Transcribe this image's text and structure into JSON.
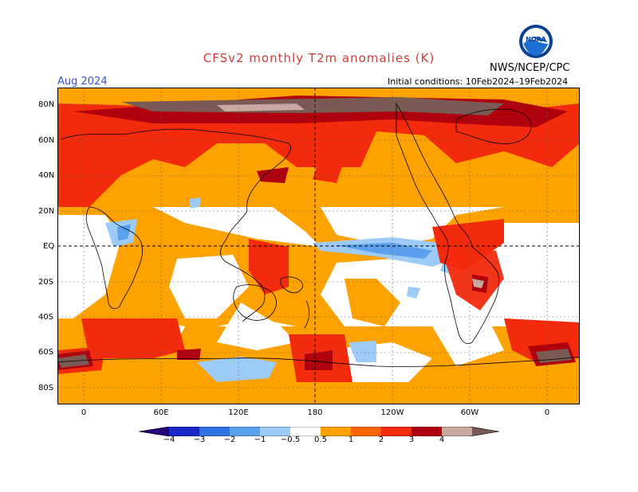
{
  "header": {
    "title": "CFSv2 monthly T2m anomalies (K)",
    "agency": "NWS/NCEP/CPC",
    "month": "Aug 2024",
    "initial_conditions": "Initial conditions: 10Feb2024–19Feb2024"
  },
  "colors": {
    "title": "#d23c3c",
    "month": "#3a4fd0",
    "bins": [
      "#24007d",
      "#1a28c8",
      "#2f72e4",
      "#5aa0ee",
      "#9ccbf7",
      "#ffffff",
      "#fea200",
      "#ff6600",
      "#f42a0d",
      "#b0000e",
      "#6e0000",
      "#c9a9a0",
      "#7a5a52"
    ]
  },
  "logo": {
    "icon": "noaa-logo-icon",
    "text": "NOAA"
  },
  "map": {
    "lat_labels": [
      "80N",
      "60N",
      "40N",
      "20N",
      "EQ",
      "20S",
      "40S",
      "60S",
      "80S"
    ],
    "lon_labels": [
      "0",
      "60E",
      "120E",
      "180",
      "120W",
      "60W",
      "0"
    ]
  },
  "colorbar": {
    "labels": [
      "−4",
      "−3",
      "−2",
      "−1",
      "−0.5",
      "0.5",
      "1",
      "2",
      "3",
      "4"
    ]
  }
}
